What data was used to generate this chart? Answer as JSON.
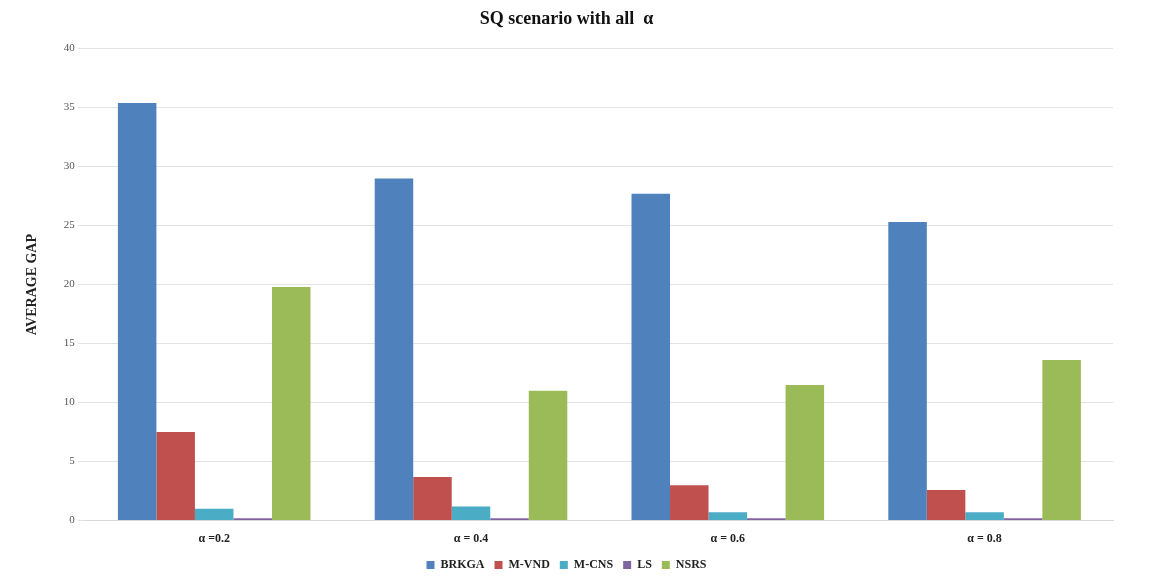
{
  "chart_data": {
    "type": "bar",
    "title": "SQ scenario with all  α",
    "ylabel": "AVERAGE GAP",
    "categories": [
      "α =0.2",
      "α = 0.4",
      "α = 0.6",
      "α = 0.8"
    ],
    "series": [
      {
        "name": "BRKGA",
        "color": "#4f81bd",
        "values": [
          35.4,
          29.0,
          27.7,
          25.3
        ]
      },
      {
        "name": "M-VND",
        "color": "#c0504d",
        "values": [
          7.5,
          3.7,
          3.0,
          2.6
        ]
      },
      {
        "name": "M-CNS",
        "color": "#4bacc6",
        "values": [
          1.0,
          1.2,
          0.7,
          0.7
        ]
      },
      {
        "name": "LS",
        "color": "#8064a2",
        "values": [
          0.2,
          0.2,
          0.2,
          0.2
        ]
      },
      {
        "name": "NSRS",
        "color": "#9bbb59",
        "values": [
          19.8,
          11.0,
          11.5,
          13.6
        ]
      }
    ],
    "ylim": [
      0,
      40
    ],
    "yticks": [
      0,
      5,
      10,
      15,
      20,
      25,
      30,
      35,
      40
    ],
    "grid": "y",
    "legend": "bottom"
  }
}
